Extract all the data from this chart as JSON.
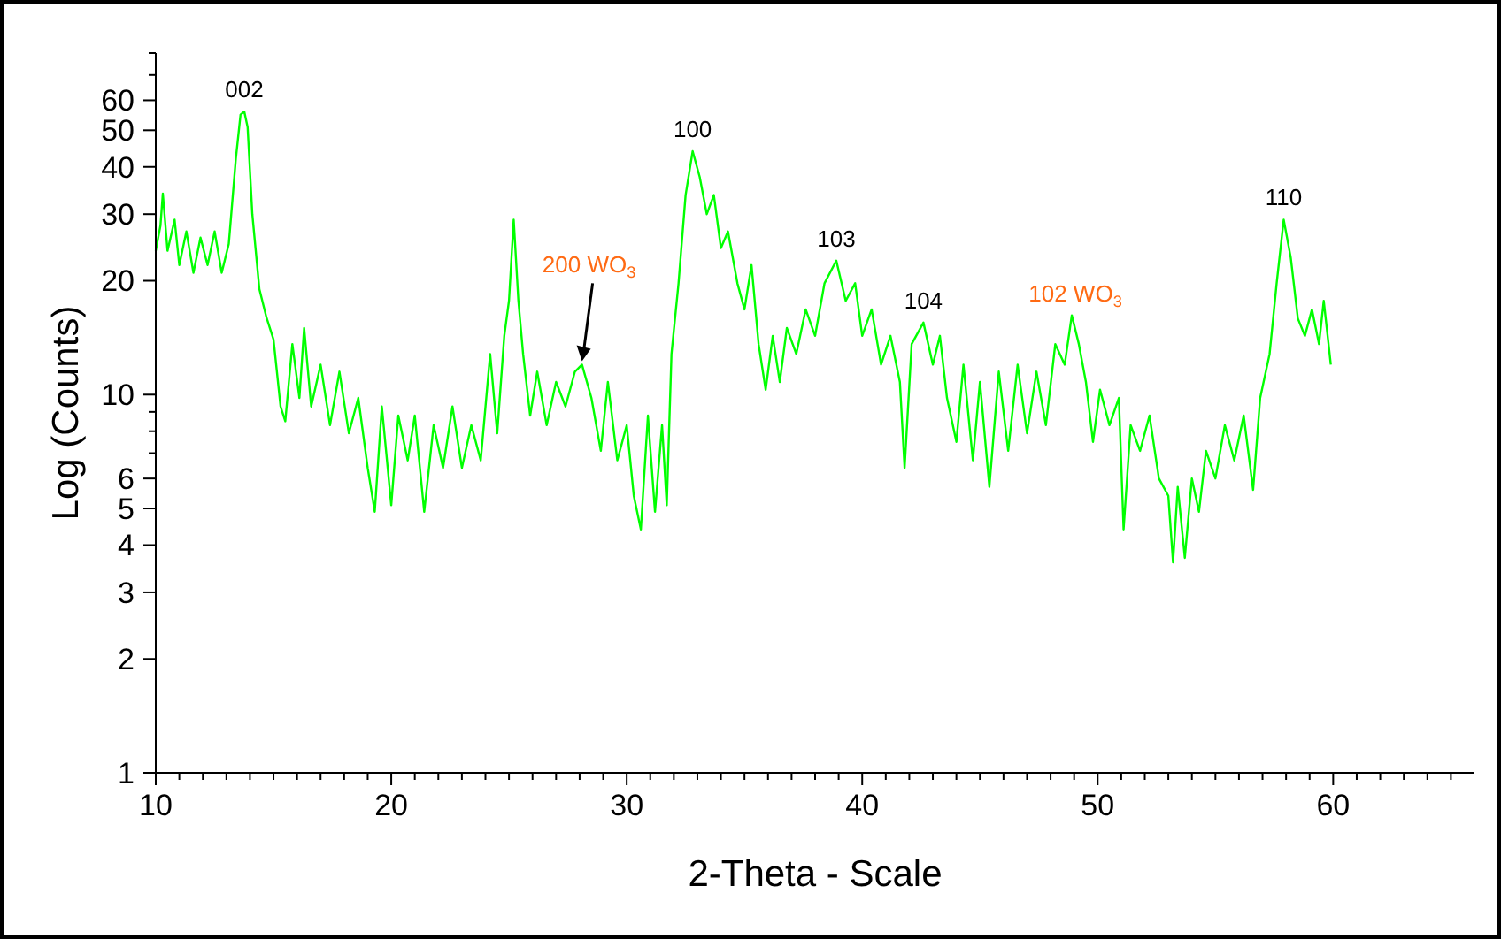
{
  "chart_data": {
    "type": "line",
    "xlabel": "2-Theta - Scale",
    "ylabel": "Log (Counts)",
    "log": "y",
    "grid": false,
    "line_style": "solid",
    "xlim": [
      10,
      66
    ],
    "ylim": [
      1,
      80
    ],
    "xticks": [
      10,
      {
        "value": 11,
        "label": null
      },
      {
        "value": 12,
        "label": null
      },
      {
        "value": 13,
        "label": null
      },
      {
        "value": 14,
        "label": null
      },
      {
        "value": 15,
        "label": null
      },
      {
        "value": 16,
        "label": null
      },
      {
        "value": 17,
        "label": null
      },
      {
        "value": 18,
        "label": null
      },
      {
        "value": 19,
        "label": null
      },
      20,
      {
        "value": 21,
        "label": null
      },
      {
        "value": 22,
        "label": null
      },
      {
        "value": 23,
        "label": null
      },
      {
        "value": 24,
        "label": null
      },
      {
        "value": 25,
        "label": null
      },
      {
        "value": 26,
        "label": null
      },
      {
        "value": 27,
        "label": null
      },
      {
        "value": 28,
        "label": null
      },
      {
        "value": 29,
        "label": null
      },
      30,
      {
        "value": 31,
        "label": null
      },
      {
        "value": 32,
        "label": null
      },
      {
        "value": 33,
        "label": null
      },
      {
        "value": 34,
        "label": null
      },
      {
        "value": 35,
        "label": null
      },
      {
        "value": 36,
        "label": null
      },
      {
        "value": 37,
        "label": null
      },
      {
        "value": 38,
        "label": null
      },
      {
        "value": 39,
        "label": null
      },
      40,
      {
        "value": 41,
        "label": null
      },
      {
        "value": 42,
        "label": null
      },
      {
        "value": 43,
        "label": null
      },
      {
        "value": 44,
        "label": null
      },
      {
        "value": 45,
        "label": null
      },
      {
        "value": 46,
        "label": null
      },
      {
        "value": 47,
        "label": null
      },
      {
        "value": 48,
        "label": null
      },
      {
        "value": 49,
        "label": null
      },
      50,
      {
        "value": 51,
        "label": null
      },
      {
        "value": 52,
        "label": null
      },
      {
        "value": 53,
        "label": null
      },
      {
        "value": 54,
        "label": null
      },
      {
        "value": 55,
        "label": null
      },
      {
        "value": 56,
        "label": null
      },
      {
        "value": 57,
        "label": null
      },
      {
        "value": 58,
        "label": null
      },
      {
        "value": 59,
        "label": null
      },
      60,
      {
        "value": 61,
        "label": null
      },
      {
        "value": 62,
        "label": null
      },
      {
        "value": 63,
        "label": null
      },
      {
        "value": 64,
        "label": null
      },
      {
        "value": 65,
        "label": null
      }
    ],
    "yticks": [
      1,
      2,
      3,
      4,
      5,
      6,
      {
        "value": 7,
        "label": null
      },
      {
        "value": 8,
        "label": null
      },
      {
        "value": 9,
        "label": null
      },
      10,
      20,
      30,
      40,
      50,
      60,
      {
        "value": 70,
        "label": null
      },
      {
        "value": 80,
        "label": null
      }
    ],
    "series": [
      {
        "color": "#00ff00",
        "x": [
          10.0,
          10.2,
          10.3,
          10.5,
          10.8,
          11.0,
          11.3,
          11.6,
          11.9,
          12.2,
          12.5,
          12.8,
          13.1,
          13.4,
          13.6,
          13.76,
          13.9,
          14.1,
          14.4,
          14.7,
          15.0,
          15.3,
          15.5,
          15.8,
          16.1,
          16.3,
          16.6,
          17.0,
          17.4,
          17.8,
          18.2,
          18.6,
          19.0,
          19.3,
          19.6,
          20.0,
          20.3,
          20.7,
          21.0,
          21.4,
          21.8,
          22.2,
          22.6,
          23.0,
          23.4,
          23.8,
          24.2,
          24.5,
          24.8,
          25.0,
          25.2,
          25.4,
          25.6,
          25.9,
          26.2,
          26.6,
          27.0,
          27.4,
          27.8,
          28.1,
          28.5,
          28.9,
          29.2,
          29.6,
          30.0,
          30.3,
          30.6,
          30.9,
          31.2,
          31.5,
          31.7,
          31.9,
          32.2,
          32.5,
          32.8,
          33.1,
          33.4,
          33.7,
          34.0,
          34.3,
          34.7,
          35.0,
          35.3,
          35.6,
          35.9,
          36.2,
          36.5,
          36.8,
          37.2,
          37.6,
          38.0,
          38.4,
          38.9,
          39.3,
          39.7,
          40.0,
          40.4,
          40.8,
          41.2,
          41.6,
          41.8,
          42.1,
          42.6,
          43.0,
          43.3,
          43.6,
          44.0,
          44.3,
          44.7,
          45.0,
          45.4,
          45.8,
          46.2,
          46.6,
          47.0,
          47.4,
          47.8,
          48.2,
          48.6,
          48.9,
          49.2,
          49.5,
          49.8,
          50.1,
          50.5,
          50.9,
          51.1,
          51.4,
          51.8,
          52.2,
          52.6,
          53.0,
          53.2,
          53.4,
          53.7,
          54.0,
          54.3,
          54.6,
          55.0,
          55.4,
          55.8,
          56.2,
          56.6,
          56.9,
          57.3,
          57.6,
          57.9,
          58.2,
          58.5,
          58.8,
          59.1,
          59.4,
          59.6,
          59.9
        ],
        "values": [
          24,
          28,
          34,
          24,
          29,
          22,
          27,
          21,
          26,
          22,
          27,
          21,
          25,
          42,
          55,
          56,
          51,
          30,
          19,
          16,
          14,
          9.3,
          8.5,
          13.6,
          9.8,
          15,
          9.3,
          12,
          8.3,
          11.5,
          7.9,
          9.8,
          6.4,
          4.9,
          9.3,
          5.1,
          8.8,
          6.7,
          8.8,
          4.9,
          8.3,
          6.4,
          9.3,
          6.4,
          8.3,
          6.7,
          12.8,
          7.9,
          14.3,
          17.7,
          29,
          17.7,
          12.8,
          8.8,
          11.5,
          8.3,
          10.8,
          9.3,
          11.5,
          12,
          9.8,
          7.1,
          10.8,
          6.7,
          8.3,
          5.4,
          4.4,
          8.8,
          4.9,
          8.3,
          5.1,
          12.8,
          19.7,
          33.7,
          44,
          37.6,
          30,
          33.7,
          24.4,
          27,
          19.7,
          16.8,
          22,
          13.6,
          10.3,
          14.3,
          10.8,
          15,
          12.8,
          16.8,
          14.3,
          19.7,
          22.6,
          17.7,
          19.7,
          14.3,
          16.8,
          12,
          14.3,
          10.8,
          6.4,
          13.6,
          15.5,
          12,
          14.3,
          9.8,
          7.5,
          12,
          6.7,
          10.8,
          5.7,
          11.5,
          7.1,
          12,
          7.9,
          11.5,
          8.3,
          13.6,
          12,
          16.2,
          13.6,
          10.8,
          7.5,
          10.3,
          8.3,
          9.8,
          4.4,
          8.3,
          7.1,
          8.8,
          6,
          5.4,
          3.6,
          5.7,
          3.7,
          6,
          4.9,
          7.1,
          6,
          8.3,
          6.7,
          8.8,
          5.6,
          9.8,
          12.8,
          19.7,
          29,
          23,
          15.9,
          14.3,
          16.8,
          13.6,
          17.7,
          12
        ]
      }
    ],
    "annotations": [
      {
        "text": "002",
        "x": 13.76,
        "y": 56
      },
      {
        "text": "200 WO$_{3}$",
        "x": 28.1,
        "y": 12
      },
      {
        "text": "100",
        "x": 32.8,
        "y": 44
      },
      {
        "text": "103",
        "x": 38.9,
        "y": 22.6
      },
      {
        "text": "104",
        "x": 42.6,
        "y": 15.5
      },
      {
        "text": "102 WO$_{3}$",
        "x": 48.9,
        "y": 16.2
      },
      {
        "text": "110",
        "x": 57.9,
        "y": 29
      }
    ]
  }
}
